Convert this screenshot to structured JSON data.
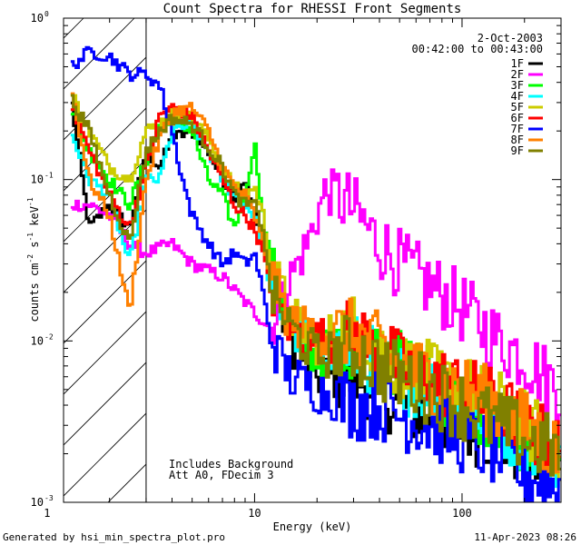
{
  "chart_data": {
    "type": "line",
    "title": "Count Spectra for RHESSI Front Segments",
    "xlabel": "Energy (keV)",
    "ylabel_parts": [
      "counts cm",
      "-2",
      " s",
      "-1",
      " keV",
      "-1"
    ],
    "x_scale": "log",
    "y_scale": "log",
    "xlim": [
      1.2,
      300
    ],
    "ylim": [
      0.001,
      1
    ],
    "x_tick_labels": [
      {
        "value": 1,
        "label": "1"
      },
      {
        "value": 10,
        "label": "10"
      },
      {
        "value": 100,
        "label": "100"
      }
    ],
    "y_tick_labels": [
      {
        "value": 1,
        "base": "10",
        "exp": "0"
      },
      {
        "value": 0.1,
        "base": "10",
        "exp": "-1"
      },
      {
        "value": 0.01,
        "base": "10",
        "exp": "-2"
      },
      {
        "value": 0.001,
        "base": "10",
        "exp": "-3"
      }
    ],
    "date": "2-Oct-2003",
    "time_range": "00:42:00 to 00:43:00",
    "hatched_region_below_keV": 3,
    "annotations": [
      "Includes Background",
      "Att A0, FDecim 3"
    ],
    "series": [
      {
        "name": "1F",
        "color": "#000000",
        "points": [
          [
            1.3,
            0.33
          ],
          [
            1.6,
            0.05
          ],
          [
            2,
            0.07
          ],
          [
            2.5,
            0.05
          ],
          [
            3,
            0.15
          ],
          [
            3.5,
            0.12
          ],
          [
            4,
            0.18
          ],
          [
            5,
            0.2
          ],
          [
            6,
            0.15
          ],
          [
            7,
            0.1
          ],
          [
            8,
            0.08
          ],
          [
            9,
            0.1
          ],
          [
            10,
            0.06
          ],
          [
            11,
            0.04
          ],
          [
            12,
            0.025
          ],
          [
            15,
            0.01
          ],
          [
            20,
            0.006
          ],
          [
            30,
            0.006
          ],
          [
            40,
            0.005
          ],
          [
            50,
            0.004
          ],
          [
            70,
            0.0035
          ],
          [
            100,
            0.003
          ],
          [
            150,
            0.0025
          ],
          [
            200,
            0.002
          ],
          [
            300,
            0.0015
          ]
        ]
      },
      {
        "name": "2F",
        "color": "#ff00ff",
        "points": [
          [
            1.3,
            0.07
          ],
          [
            1.6,
            0.07
          ],
          [
            2,
            0.06
          ],
          [
            2.5,
            0.04
          ],
          [
            3,
            0.035
          ],
          [
            4,
            0.04
          ],
          [
            5,
            0.03
          ],
          [
            7,
            0.025
          ],
          [
            10,
            0.015
          ],
          [
            12,
            0.012
          ],
          [
            15,
            0.025
          ],
          [
            18,
            0.04
          ],
          [
            20,
            0.06
          ],
          [
            22,
            0.085
          ],
          [
            25,
            0.08
          ],
          [
            30,
            0.065
          ],
          [
            35,
            0.05
          ],
          [
            40,
            0.04
          ],
          [
            50,
            0.03
          ],
          [
            70,
            0.022
          ],
          [
            100,
            0.016
          ],
          [
            150,
            0.01
          ],
          [
            200,
            0.008
          ],
          [
            250,
            0.006
          ],
          [
            300,
            0.005
          ]
        ]
      },
      {
        "name": "3F",
        "color": "#00ff00",
        "points": [
          [
            1.3,
            0.28
          ],
          [
            1.6,
            0.15
          ],
          [
            2,
            0.1
          ],
          [
            2.5,
            0.07
          ],
          [
            3,
            0.13
          ],
          [
            3.5,
            0.22
          ],
          [
            4,
            0.25
          ],
          [
            5,
            0.2
          ],
          [
            6,
            0.1
          ],
          [
            7,
            0.08
          ],
          [
            8,
            0.05
          ],
          [
            9,
            0.08
          ],
          [
            10,
            0.17
          ],
          [
            11,
            0.06
          ],
          [
            12,
            0.03
          ],
          [
            15,
            0.012
          ],
          [
            20,
            0.008
          ],
          [
            30,
            0.01
          ],
          [
            40,
            0.008
          ],
          [
            50,
            0.007
          ],
          [
            70,
            0.006
          ],
          [
            100,
            0.004
          ],
          [
            150,
            0.003
          ],
          [
            200,
            0.0025
          ],
          [
            300,
            0.002
          ]
        ]
      },
      {
        "name": "4F",
        "color": "#00ffff",
        "points": [
          [
            1.3,
            0.2
          ],
          [
            1.6,
            0.1
          ],
          [
            2,
            0.08
          ],
          [
            2.5,
            0.03
          ],
          [
            3,
            0.1
          ],
          [
            3.5,
            0.1
          ],
          [
            4,
            0.2
          ],
          [
            5,
            0.22
          ],
          [
            6,
            0.15
          ],
          [
            7,
            0.1
          ],
          [
            8,
            0.08
          ],
          [
            9,
            0.07
          ],
          [
            10,
            0.06
          ],
          [
            11,
            0.04
          ],
          [
            12,
            0.02
          ],
          [
            15,
            0.012
          ],
          [
            20,
            0.009
          ],
          [
            30,
            0.009
          ],
          [
            40,
            0.007
          ],
          [
            50,
            0.006
          ],
          [
            70,
            0.005
          ],
          [
            100,
            0.004
          ],
          [
            150,
            0.003
          ],
          [
            200,
            0.0025
          ],
          [
            300,
            0.002
          ]
        ]
      },
      {
        "name": "5F",
        "color": "#cccc00",
        "points": [
          [
            1.3,
            0.35
          ],
          [
            1.6,
            0.2
          ],
          [
            2,
            0.12
          ],
          [
            2.5,
            0.1
          ],
          [
            3,
            0.2
          ],
          [
            3.5,
            0.22
          ],
          [
            4,
            0.26
          ],
          [
            5,
            0.24
          ],
          [
            6,
            0.18
          ],
          [
            7,
            0.12
          ],
          [
            8,
            0.09
          ],
          [
            9,
            0.08
          ],
          [
            10,
            0.09
          ],
          [
            11,
            0.06
          ],
          [
            12,
            0.03
          ],
          [
            15,
            0.014
          ],
          [
            20,
            0.01
          ],
          [
            30,
            0.012
          ],
          [
            40,
            0.009
          ],
          [
            50,
            0.007
          ],
          [
            70,
            0.006
          ],
          [
            100,
            0.005
          ],
          [
            150,
            0.004
          ],
          [
            200,
            0.003
          ],
          [
            300,
            0.0022
          ]
        ]
      },
      {
        "name": "6F",
        "color": "#ff0000",
        "points": [
          [
            1.3,
            0.3
          ],
          [
            1.6,
            0.15
          ],
          [
            2,
            0.08
          ],
          [
            2.5,
            0.05
          ],
          [
            3,
            0.12
          ],
          [
            3.5,
            0.25
          ],
          [
            4,
            0.28
          ],
          [
            5,
            0.25
          ],
          [
            6,
            0.15
          ],
          [
            7,
            0.1
          ],
          [
            8,
            0.07
          ],
          [
            9,
            0.06
          ],
          [
            10,
            0.05
          ],
          [
            11,
            0.035
          ],
          [
            12,
            0.02
          ],
          [
            15,
            0.012
          ],
          [
            20,
            0.01
          ],
          [
            30,
            0.011
          ],
          [
            40,
            0.009
          ],
          [
            50,
            0.007
          ],
          [
            70,
            0.006
          ],
          [
            100,
            0.005
          ],
          [
            150,
            0.004
          ],
          [
            200,
            0.003
          ],
          [
            300,
            0.002
          ]
        ]
      },
      {
        "name": "7F",
        "color": "#0000ff",
        "points": [
          [
            1.3,
            0.5
          ],
          [
            1.6,
            0.62
          ],
          [
            2,
            0.58
          ],
          [
            2.5,
            0.45
          ],
          [
            3,
            0.45
          ],
          [
            3.5,
            0.38
          ],
          [
            4,
            0.2
          ],
          [
            4.5,
            0.1
          ],
          [
            5,
            0.06
          ],
          [
            6,
            0.04
          ],
          [
            7,
            0.03
          ],
          [
            8,
            0.035
          ],
          [
            9,
            0.03
          ],
          [
            10,
            0.035
          ],
          [
            11,
            0.02
          ],
          [
            12,
            0.01
          ],
          [
            15,
            0.006
          ],
          [
            20,
            0.005
          ],
          [
            30,
            0.004
          ],
          [
            40,
            0.004
          ],
          [
            50,
            0.0035
          ],
          [
            70,
            0.003
          ],
          [
            100,
            0.0025
          ],
          [
            150,
            0.002
          ],
          [
            200,
            0.0015
          ],
          [
            300,
            0.0012
          ]
        ]
      },
      {
        "name": "8F",
        "color": "#ff8000",
        "points": [
          [
            1.3,
            0.38
          ],
          [
            1.6,
            0.1
          ],
          [
            2,
            0.06
          ],
          [
            2.5,
            0.015
          ],
          [
            3,
            0.1
          ],
          [
            3.5,
            0.18
          ],
          [
            4,
            0.26
          ],
          [
            5,
            0.28
          ],
          [
            6,
            0.2
          ],
          [
            7,
            0.12
          ],
          [
            8,
            0.09
          ],
          [
            9,
            0.08
          ],
          [
            10,
            0.06
          ],
          [
            11,
            0.04
          ],
          [
            12,
            0.025
          ],
          [
            15,
            0.013
          ],
          [
            20,
            0.011
          ],
          [
            30,
            0.011
          ],
          [
            40,
            0.009
          ],
          [
            50,
            0.007
          ],
          [
            70,
            0.006
          ],
          [
            100,
            0.005
          ],
          [
            150,
            0.004
          ],
          [
            200,
            0.003
          ],
          [
            300,
            0.002
          ]
        ]
      },
      {
        "name": "9F",
        "color": "#808000",
        "points": [
          [
            1.3,
            0.32
          ],
          [
            1.6,
            0.2
          ],
          [
            2,
            0.08
          ],
          [
            2.5,
            0.04
          ],
          [
            3,
            0.15
          ],
          [
            3.5,
            0.2
          ],
          [
            4,
            0.24
          ],
          [
            5,
            0.22
          ],
          [
            6,
            0.16
          ],
          [
            7,
            0.12
          ],
          [
            8,
            0.08
          ],
          [
            9,
            0.07
          ],
          [
            10,
            0.07
          ],
          [
            11,
            0.05
          ],
          [
            12,
            0.02
          ],
          [
            15,
            0.012
          ],
          [
            20,
            0.008
          ],
          [
            30,
            0.009
          ],
          [
            40,
            0.007
          ],
          [
            50,
            0.006
          ],
          [
            70,
            0.005
          ],
          [
            100,
            0.004
          ],
          [
            150,
            0.003
          ],
          [
            200,
            0.0025
          ],
          [
            300,
            0.002
          ]
        ]
      }
    ]
  },
  "footer": {
    "generated_by": "Generated by hsi_min_spectra_plot.pro",
    "timestamp": "11-Apr-2023 08:26"
  }
}
